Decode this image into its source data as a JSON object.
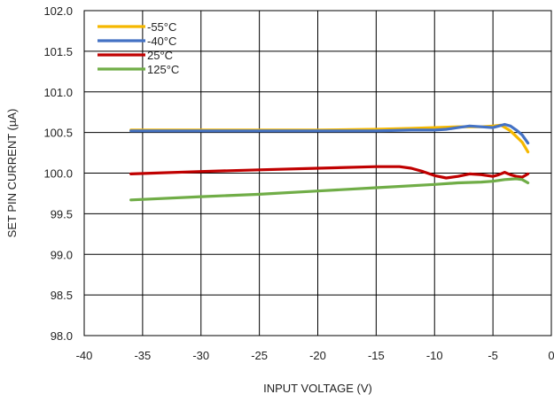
{
  "chart_data": {
    "type": "line",
    "title": "",
    "xlabel": "INPUT VOLTAGE (V)",
    "ylabel": "SET PIN CURRENT (µA)",
    "xlim": [
      -40,
      0
    ],
    "ylim": [
      98.0,
      102.0
    ],
    "x_ticks": [
      -40,
      -35,
      -30,
      -25,
      -20,
      -15,
      -10,
      -5,
      0
    ],
    "y_ticks": [
      98.0,
      98.5,
      99.0,
      99.5,
      100.0,
      100.5,
      101.0,
      101.5,
      102.0
    ],
    "x_tick_labels": [
      "-40",
      "-35",
      "-30",
      "-25",
      "-20",
      "-15",
      "-10",
      "-5",
      "0"
    ],
    "y_tick_labels": [
      "98.0",
      "98.5",
      "99.0",
      "99.5",
      "100.0",
      "100.5",
      "101.0",
      "101.5",
      "102.0"
    ],
    "grid": true,
    "legend_position": "top-left",
    "series": [
      {
        "name": "-55°C",
        "color": "#f5b800",
        "x": [
          -36,
          -30,
          -25,
          -20,
          -15,
          -12,
          -10,
          -8,
          -6,
          -5,
          -4.3,
          -3.5,
          -3,
          -2.5,
          -2
        ],
        "y": [
          100.53,
          100.53,
          100.53,
          100.53,
          100.54,
          100.55,
          100.56,
          100.57,
          100.57,
          100.58,
          100.59,
          100.52,
          100.45,
          100.38,
          100.26
        ]
      },
      {
        "name": "-40°C",
        "color": "#4472c4",
        "x": [
          -36,
          -30,
          -25,
          -20,
          -15,
          -12,
          -10,
          -9,
          -8,
          -7,
          -6,
          -5,
          -4.5,
          -4,
          -3.5,
          -3,
          -2.5,
          -2
        ],
        "y": [
          100.52,
          100.52,
          100.52,
          100.52,
          100.52,
          100.53,
          100.53,
          100.54,
          100.56,
          100.58,
          100.57,
          100.56,
          100.58,
          100.6,
          100.58,
          100.53,
          100.47,
          100.37
        ]
      },
      {
        "name": "25°C",
        "color": "#c00000",
        "x": [
          -36,
          -30,
          -25,
          -20,
          -15,
          -13,
          -12,
          -11,
          -10,
          -9,
          -8,
          -7,
          -6,
          -5,
          -4.5,
          -4,
          -3.5,
          -3,
          -2.5,
          -2
        ],
        "y": [
          99.99,
          100.02,
          100.04,
          100.06,
          100.08,
          100.08,
          100.06,
          100.02,
          99.97,
          99.94,
          99.96,
          99.99,
          99.98,
          99.96,
          99.98,
          100.01,
          99.98,
          99.96,
          99.95,
          99.99
        ]
      },
      {
        "name": "125°C",
        "color": "#70ad47",
        "x": [
          -36,
          -30,
          -25,
          -20,
          -15,
          -10,
          -8,
          -6,
          -5,
          -4,
          -3,
          -2.5,
          -2
        ],
        "y": [
          99.67,
          99.71,
          99.74,
          99.78,
          99.82,
          99.86,
          99.88,
          99.89,
          99.9,
          99.92,
          99.93,
          99.92,
          99.88
        ]
      }
    ]
  }
}
